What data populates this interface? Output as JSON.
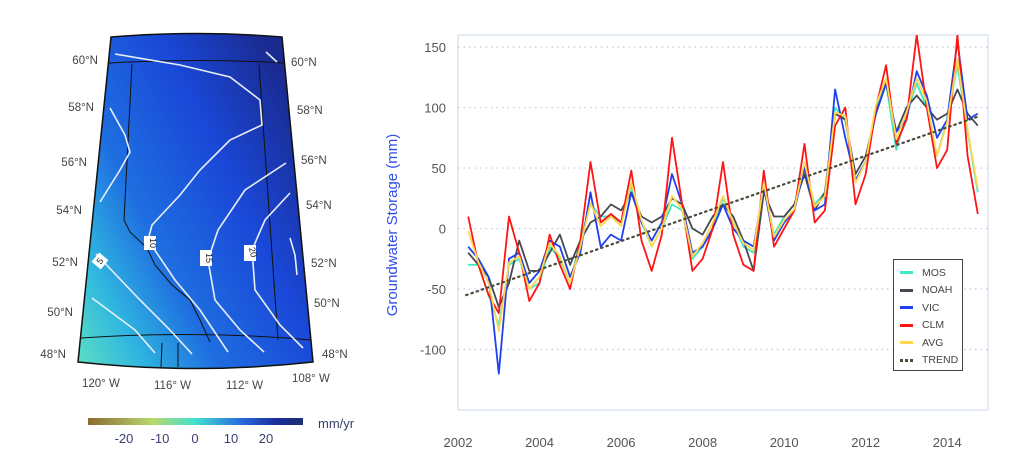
{
  "map": {
    "lat_labels": [
      "60°N",
      "58°N",
      "56°N",
      "54°N",
      "52°N",
      "50°N",
      "48°N"
    ],
    "lon_labels": [
      "120° W",
      "116° W",
      "112° W",
      "108° W"
    ],
    "contour_labels": [
      "5",
      "10",
      "15",
      "20"
    ],
    "colorbar": {
      "ticks": [
        "-20",
        "-10",
        "0",
        "10",
        "20"
      ],
      "unit": "mm/yr",
      "colors": [
        "#8a6a30",
        "#b8d870",
        "#40e0d0",
        "#2a70e0",
        "#1a2a9a",
        "#1a3070"
      ]
    }
  },
  "chart_data": {
    "type": "line",
    "title": "",
    "xlabel": "",
    "ylabel": "Groundwater Storage (mm)",
    "xlim": [
      2002,
      2015
    ],
    "ylim": [
      -150,
      160
    ],
    "xticks": [
      "2002",
      "2004",
      "2006",
      "2008",
      "2010",
      "2012",
      "2014"
    ],
    "yticks": [
      "-100",
      "-50",
      "0",
      "50",
      "100",
      "150"
    ],
    "grid": "horizontal dotted",
    "legend_position": "bottom-right",
    "x": [
      2002.25,
      2002.5,
      2002.75,
      2003,
      2003.25,
      2003.5,
      2003.75,
      2004,
      2004.25,
      2004.5,
      2004.75,
      2005,
      2005.25,
      2005.5,
      2005.75,
      2006,
      2006.25,
      2006.5,
      2006.75,
      2007,
      2007.25,
      2007.5,
      2007.75,
      2008,
      2008.25,
      2008.5,
      2008.75,
      2009,
      2009.25,
      2009.5,
      2009.75,
      2010,
      2010.25,
      2010.5,
      2010.75,
      2011,
      2011.25,
      2011.5,
      2011.75,
      2012,
      2012.25,
      2012.5,
      2012.75,
      2013,
      2013.25,
      2013.5,
      2013.75,
      2014,
      2014.25,
      2014.5,
      2014.75
    ],
    "series": [
      {
        "name": "MOS",
        "color": "#40e8c8",
        "values": [
          -30,
          -30,
          -55,
          -80,
          -30,
          -25,
          -50,
          -45,
          -15,
          -25,
          -45,
          -10,
          20,
          10,
          10,
          5,
          35,
          5,
          -15,
          0,
          20,
          15,
          -25,
          -15,
          0,
          25,
          5,
          -15,
          -20,
          35,
          -5,
          10,
          20,
          50,
          20,
          30,
          100,
          90,
          40,
          55,
          100,
          120,
          65,
          95,
          120,
          100,
          60,
          90,
          135,
          80,
          30
        ]
      },
      {
        "name": "NOAH",
        "color": "#454a52",
        "values": [
          -20,
          -30,
          -40,
          -65,
          -45,
          -10,
          -35,
          -35,
          -20,
          -5,
          -30,
          -10,
          5,
          10,
          20,
          15,
          30,
          10,
          5,
          10,
          25,
          20,
          0,
          -5,
          10,
          20,
          10,
          -10,
          -35,
          30,
          10,
          10,
          20,
          45,
          15,
          30,
          95,
          90,
          45,
          60,
          95,
          120,
          80,
          100,
          110,
          100,
          90,
          95,
          115,
          95,
          85
        ]
      },
      {
        "name": "VIC",
        "color": "#2040f0",
        "values": [
          -15,
          -25,
          -40,
          -120,
          -25,
          -20,
          -45,
          -35,
          -10,
          -15,
          -40,
          -20,
          30,
          -15,
          -5,
          -10,
          30,
          5,
          -10,
          5,
          45,
          20,
          -20,
          -15,
          0,
          20,
          0,
          -10,
          -15,
          35,
          -10,
          5,
          15,
          50,
          15,
          20,
          115,
          75,
          40,
          55,
          95,
          120,
          80,
          90,
          130,
          110,
          75,
          90,
          155,
          90,
          95
        ]
      },
      {
        "name": "CLM",
        "color": "#ff1414",
        "values": [
          10,
          -30,
          -55,
          -70,
          10,
          -20,
          -60,
          -45,
          -5,
          -30,
          -50,
          -10,
          55,
          5,
          12,
          5,
          48,
          -10,
          -35,
          -5,
          75,
          20,
          -35,
          -25,
          0,
          55,
          -5,
          -30,
          -35,
          48,
          -15,
          0,
          15,
          70,
          5,
          15,
          85,
          100,
          20,
          45,
          100,
          135,
          70,
          90,
          160,
          100,
          50,
          65,
          160,
          60,
          12
        ]
      },
      {
        "name": "AVG",
        "color": "#ffd850",
        "values": [
          -2,
          -28,
          -45,
          -85,
          -28,
          -23,
          -50,
          -40,
          -12,
          -23,
          -45,
          -15,
          21,
          2,
          10,
          2,
          38,
          7,
          -15,
          0,
          27,
          16,
          -23,
          -12,
          5,
          27,
          5,
          -12,
          -18,
          38,
          -7,
          7,
          16,
          55,
          18,
          27,
          96,
          93,
          38,
          55,
          102,
          124,
          74,
          96,
          124,
          105,
          60,
          88,
          140,
          82,
          33
        ]
      },
      {
        "name": "TREND",
        "color": "#4a4a3a",
        "style": "dotted",
        "x": [
          2002.2,
          2014.8
        ],
        "values": [
          -55,
          93
        ]
      }
    ]
  }
}
